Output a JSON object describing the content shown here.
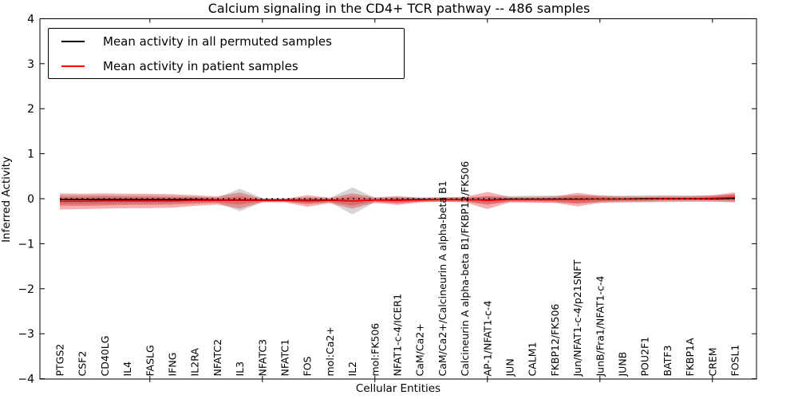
{
  "title": "Calcium signaling in the CD4+ TCR pathway -- 486 samples",
  "legend": {
    "items": [
      {
        "id": "permuted_mean",
        "label": "Mean activity in all permuted samples",
        "color": "#000000"
      },
      {
        "id": "patient_mean",
        "label": "Mean activity in patient samples",
        "color": "#ff0000"
      }
    ]
  },
  "chart_data": {
    "type": "line",
    "title": "Calcium signaling in the CD4+ TCR pathway -- 486 samples",
    "xlabel": "Cellular Entities",
    "ylabel": "Inferred Activity",
    "ylim": [
      -4,
      4
    ],
    "yticks": [
      -4,
      -3,
      -2,
      -1,
      0,
      1,
      2,
      3,
      4
    ],
    "grid": false,
    "legend_position": "upper left",
    "zero_line": {
      "style": "dotted",
      "color": "#000000",
      "y": 0
    },
    "categories": [
      "PTGS2",
      "CSF2",
      "CD40LG",
      "IL4",
      "FASLG",
      "IFNG",
      "IL2RA",
      "NFATC2",
      "IL3",
      "NFATC3",
      "NFATC1",
      "FOS",
      "mol:Ca2+",
      "IL2",
      "mol:FK506",
      "NFAT1-c-4/ICER1",
      "CaM/Ca2+",
      "CaM/Ca2+/Calcineurin A alpha-beta B1",
      "Calcineurin A alpha-beta B1/FKBP12/FK506",
      "AP-1/NFAT1-c-4",
      "JUN",
      "CALM1",
      "FKBP12/FK506",
      "Jun/NFAT1-c-4/p21SNFT",
      "JunB/Fra1/NFAT1-c-4",
      "JUNB",
      "POU2F1",
      "BATF3",
      "FKBP1A",
      "CREM",
      "FOSL1"
    ],
    "series": [
      {
        "id": "permuted_band",
        "name": "Permuted samples activity range",
        "type": "band",
        "color": "rgba(128,128,128,0.33)",
        "center": "permuted_mean",
        "half_widths": [
          0.1,
          0.1,
          0.1,
          0.09,
          0.09,
          0.08,
          0.07,
          0.06,
          0.25,
          0.05,
          0.04,
          0.07,
          0.05,
          0.3,
          0.05,
          0.07,
          0.05,
          0.05,
          0.05,
          0.08,
          0.07,
          0.08,
          0.08,
          0.09,
          0.08,
          0.08,
          0.08,
          0.08,
          0.07,
          0.07,
          0.09
        ]
      },
      {
        "id": "patient_band_outer",
        "name": "Patient samples activity range (outer)",
        "type": "band",
        "color": "rgba(225,40,40,0.37)",
        "center": "patient_mean",
        "half_widths": [
          0.18,
          0.17,
          0.17,
          0.16,
          0.16,
          0.15,
          0.12,
          0.09,
          0.18,
          0.04,
          0.04,
          0.13,
          0.06,
          0.17,
          0.06,
          0.1,
          0.05,
          0.05,
          0.06,
          0.19,
          0.06,
          0.06,
          0.07,
          0.15,
          0.08,
          0.06,
          0.06,
          0.06,
          0.06,
          0.07,
          0.11
        ]
      },
      {
        "id": "patient_band_inner",
        "name": "Patient samples activity range (inner)",
        "type": "band",
        "color": "rgba(225,40,40,0.37)",
        "center": "patient_mean",
        "half_widths": [
          0.1,
          0.1,
          0.1,
          0.09,
          0.09,
          0.08,
          0.07,
          0.05,
          0.09,
          0.025,
          0.025,
          0.07,
          0.03,
          0.1,
          0.03,
          0.06,
          0.03,
          0.03,
          0.035,
          0.1,
          0.03,
          0.03,
          0.04,
          0.09,
          0.05,
          0.03,
          0.03,
          0.03,
          0.03,
          0.04,
          0.07
        ]
      },
      {
        "id": "permuted_mean",
        "name": "Mean activity in all permuted samples",
        "type": "line",
        "color": "#000000",
        "width": 1.7,
        "values": [
          -0.02,
          -0.02,
          -0.02,
          -0.02,
          -0.02,
          -0.02,
          -0.02,
          -0.03,
          -0.03,
          -0.03,
          -0.03,
          -0.04,
          -0.03,
          -0.05,
          -0.03,
          -0.03,
          -0.02,
          -0.02,
          -0.02,
          -0.03,
          -0.01,
          -0.01,
          -0.01,
          -0.01,
          -0.01,
          -0.01,
          0,
          0,
          0,
          0,
          0.01
        ]
      },
      {
        "id": "patient_mean",
        "name": "Mean activity in patient samples",
        "type": "line",
        "color": "#ff0000",
        "width": 1.5,
        "values": [
          -0.06,
          -0.06,
          -0.05,
          -0.05,
          -0.05,
          -0.05,
          -0.04,
          -0.04,
          -0.04,
          -0.04,
          -0.04,
          -0.05,
          -0.04,
          -0.05,
          -0.03,
          -0.04,
          -0.03,
          -0.02,
          -0.02,
          -0.04,
          -0.02,
          -0.02,
          -0.02,
          -0.02,
          -0.01,
          -0.01,
          -0.01,
          0,
          0,
          0.01,
          0.03
        ]
      }
    ],
    "major_tick_every": 5
  }
}
